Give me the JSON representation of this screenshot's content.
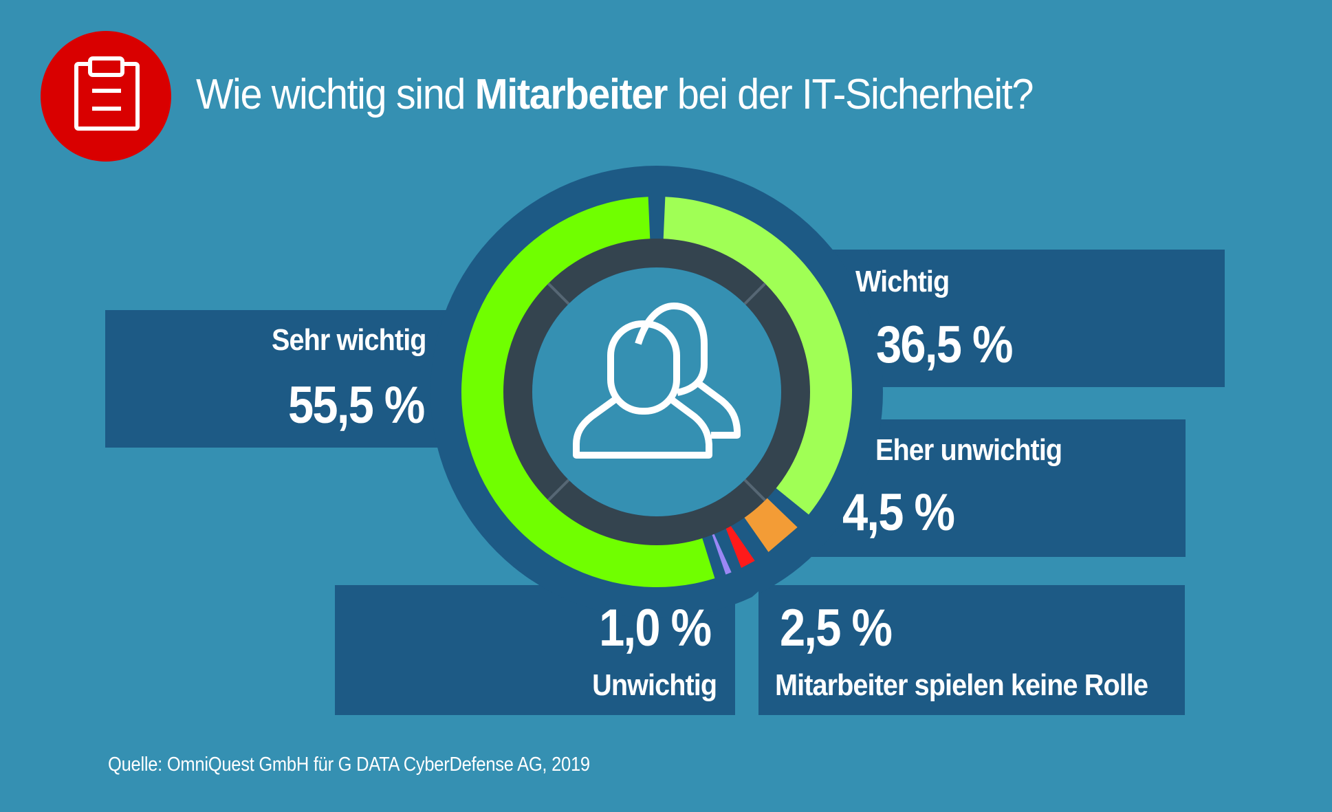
{
  "header": {
    "title_pre": "Wie wichtig sind ",
    "title_bold": "Mitarbeiter",
    "title_post": " bei der IT-Sicherheit?",
    "icon": "clipboard-icon",
    "icon_color": "#d90000"
  },
  "center_icon": "people-icon",
  "colors": {
    "background": "#3590b2",
    "panel": "#1d5a85",
    "inner_ring": "#34444f",
    "ring_tick": "#566774"
  },
  "labels": {
    "sehr_wichtig": {
      "label": "Sehr wichtig",
      "value": "55,5 %"
    },
    "wichtig": {
      "label": "Wichtig",
      "value": "36,5 %"
    },
    "eher_unwichtig": {
      "label": "Eher unwichtig",
      "value": "4,5 %"
    },
    "unwichtig": {
      "label": "Unwichtig",
      "value": "1,0 %"
    },
    "keine_rolle": {
      "label": "Mitarbeiter spielen keine Rolle",
      "value": "2,5 %"
    }
  },
  "source": "Quelle: OmniQuest GmbH für G DATA CyberDefense AG, 2019",
  "chart_data": {
    "type": "pie",
    "donut": true,
    "title": "Wie wichtig sind Mitarbeiter bei der IT-Sicherheit?",
    "unit": "%",
    "direction": "clockwise from top",
    "categories": [
      "Wichtig",
      "Eher unwichtig",
      "Mitarbeiter spielen keine Rolle",
      "Unwichtig",
      "Sehr wichtig"
    ],
    "values": [
      36.5,
      4.5,
      2.5,
      1.0,
      55.5
    ],
    "colors": [
      "#a0ff55",
      "#f39c36",
      "#ff1a1a",
      "#9b87f5",
      "#70ff00"
    ],
    "source": "OmniQuest GmbH für G DATA CyberDefense AG, 2019"
  }
}
